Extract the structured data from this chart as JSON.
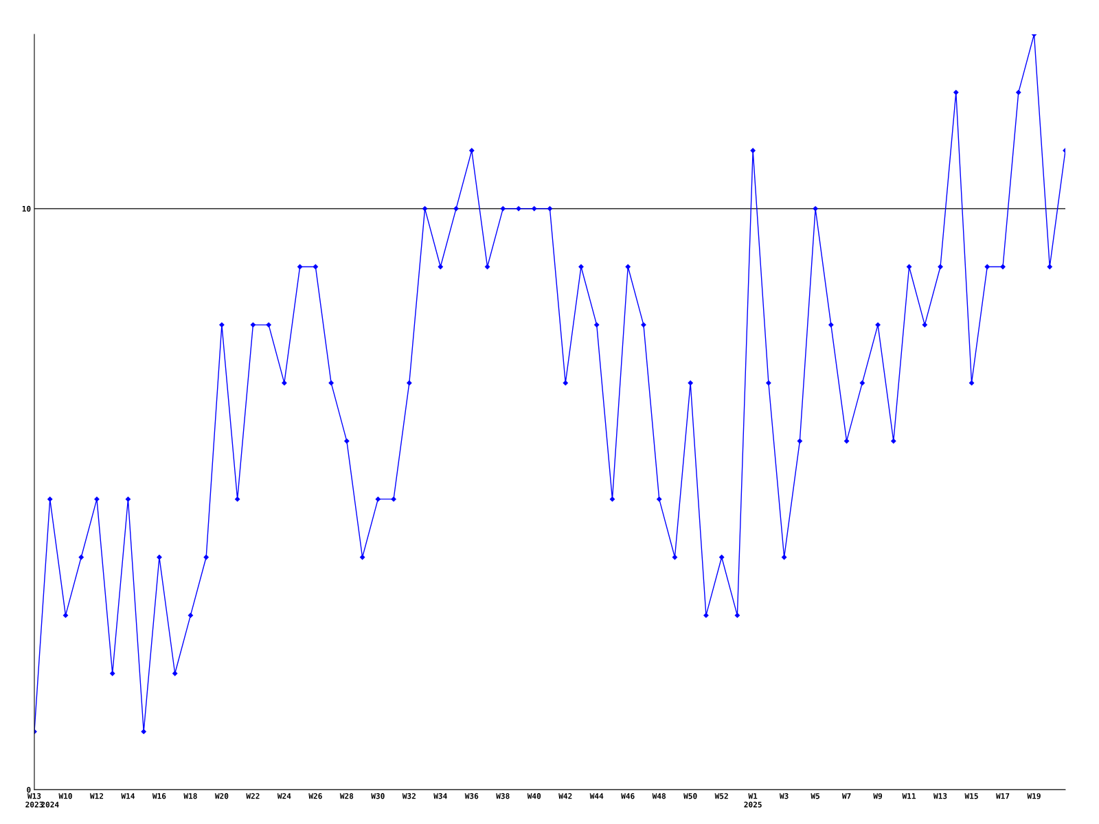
{
  "chart_data": {
    "type": "line",
    "categories": [
      "W13\n2023",
      "\n2024",
      "W10",
      null,
      "W12",
      null,
      "W14",
      null,
      "W16",
      null,
      "W18",
      null,
      "W20",
      null,
      "W22",
      null,
      "W24",
      null,
      "W26",
      null,
      "W28",
      null,
      "W30",
      null,
      "W32",
      null,
      "W34",
      null,
      "W36",
      null,
      "W38",
      null,
      "W40",
      null,
      "W42",
      null,
      "W44",
      null,
      "W46",
      null,
      "W48",
      null,
      "W50",
      null,
      "W52",
      null,
      "W1\n2025",
      null,
      "W3",
      null,
      "W5",
      null,
      "W7",
      null,
      "W9",
      null,
      "W11",
      null,
      "W13",
      null,
      "W15",
      null,
      "W17",
      null,
      "W19",
      null,
      null
    ],
    "series": [
      {
        "color": "#0000ff",
        "values": [
          1,
          5,
          3,
          4,
          5,
          2,
          5,
          1,
          4,
          2,
          3,
          4,
          8,
          5,
          8,
          8,
          7,
          9,
          9,
          7,
          6,
          4,
          5,
          5,
          7,
          10,
          9,
          10,
          11,
          9,
          10,
          10,
          10,
          10,
          7,
          9,
          8,
          5,
          9,
          8,
          5,
          4,
          7,
          3,
          4,
          3,
          11,
          7,
          4,
          6,
          10,
          8,
          6,
          7,
          8,
          6,
          9,
          8,
          9,
          12,
          7,
          9,
          9,
          12,
          13,
          9,
          11
        ]
      }
    ],
    "ylim": [
      0,
      13
    ],
    "yticks": [
      0,
      10
    ],
    "grid": "y",
    "marker": "diamond",
    "line_style": "solid"
  }
}
